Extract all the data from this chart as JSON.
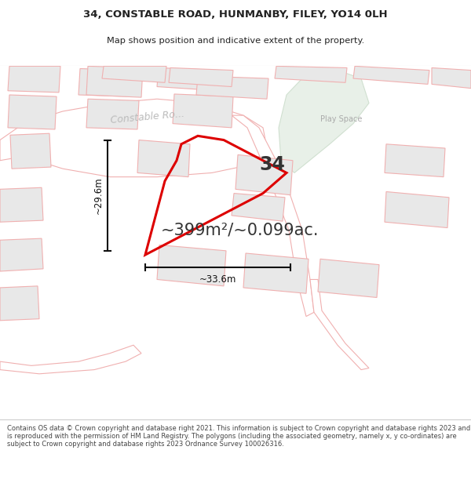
{
  "title_line1": "34, CONSTABLE ROAD, HUNMANBY, FILEY, YO14 0LH",
  "title_line2": "Map shows position and indicative extent of the property.",
  "area_text": "~399m²/~0.099ac.",
  "label_34": "34",
  "label_29_6": "~29.6m",
  "label_33_6": "~33.6m",
  "label_play_space": "Play Space",
  "footer": "Contains OS data © Crown copyright and database right 2021. This information is subject to Crown copyright and database rights 2023 and is reproduced with the permission of HM Land Registry. The polygons (including the associated geometry, namely x, y co-ordinates) are subject to Crown copyright and database rights 2023 Ordnance Survey 100026316.",
  "bg_color": "#ffffff",
  "building_fill": "#e8e8e8",
  "building_stroke": "#f0b0b0",
  "road_color": "#ffffff",
  "road_stroke": "#f0b0b0",
  "green_fill": "#e8f0e8",
  "green_stroke": "#d0e0d0",
  "plot_stroke": "#dd0000",
  "title_color": "#222222",
  "footer_color": "#444444",
  "measure_color": "#111111",
  "constable_color": "#bbbbbb"
}
